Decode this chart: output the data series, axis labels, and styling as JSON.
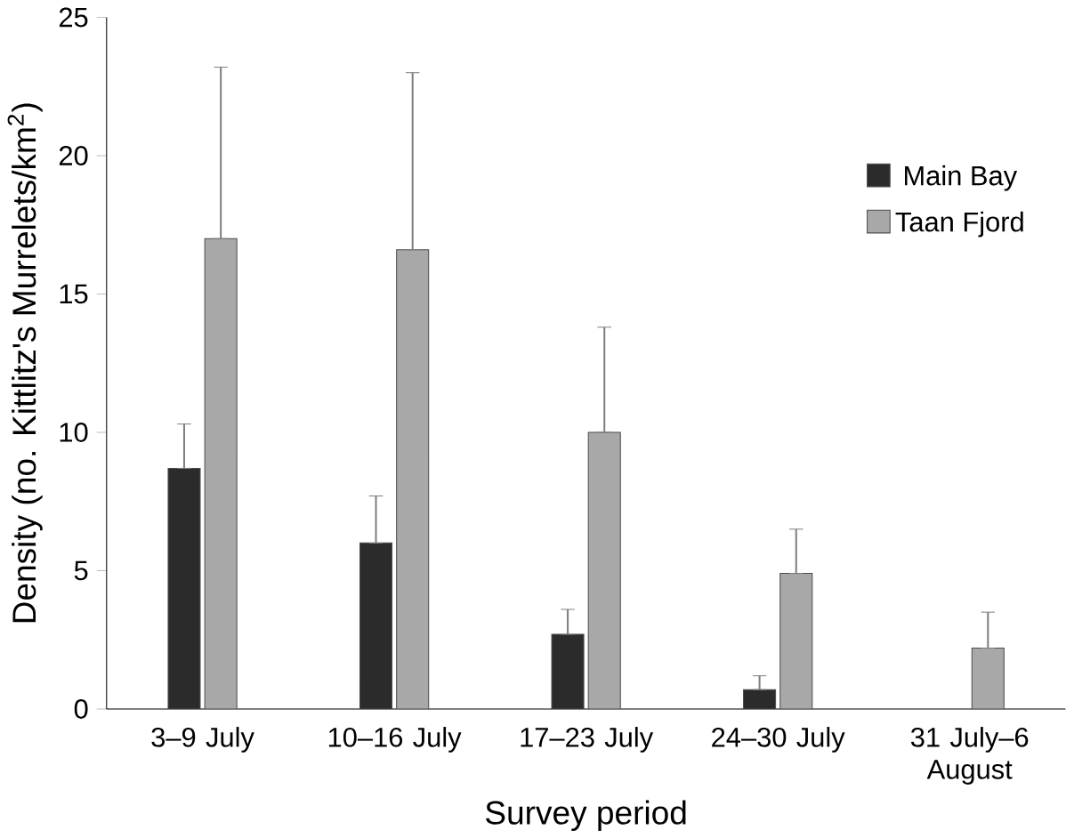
{
  "chart_data": {
    "type": "bar",
    "xlabel": "Survey period",
    "ylabel": "Density (no. Kittlitz's Murrelets/km$^{2}$)",
    "categories": [
      "3–9 July",
      "10–16 July",
      "17–23 July",
      "24–30 July",
      "31 July–6 August"
    ],
    "series": [
      {
        "name": "Main Bay",
        "color": "#2b2b2b",
        "values": [
          8.7,
          6.0,
          2.7,
          0.7,
          null
        ],
        "errors": [
          [
            8.7,
            10.3
          ],
          [
            6.0,
            7.7
          ],
          [
            2.7,
            3.6
          ],
          [
            0.7,
            1.2
          ],
          null
        ]
      },
      {
        "name": "Taan Fjord",
        "color": "#a8a8a8",
        "values": [
          17.0,
          16.6,
          10.0,
          4.9,
          2.2
        ],
        "errors": [
          [
            17.0,
            23.2
          ],
          [
            16.6,
            23.0
          ],
          [
            10.0,
            13.8
          ],
          [
            4.9,
            6.5
          ],
          [
            2.2,
            3.5
          ]
        ]
      }
    ],
    "ylim": [
      0,
      25
    ],
    "yticks": [
      0,
      5,
      10,
      15,
      20,
      25
    ],
    "legend": "top right",
    "grid": false
  }
}
